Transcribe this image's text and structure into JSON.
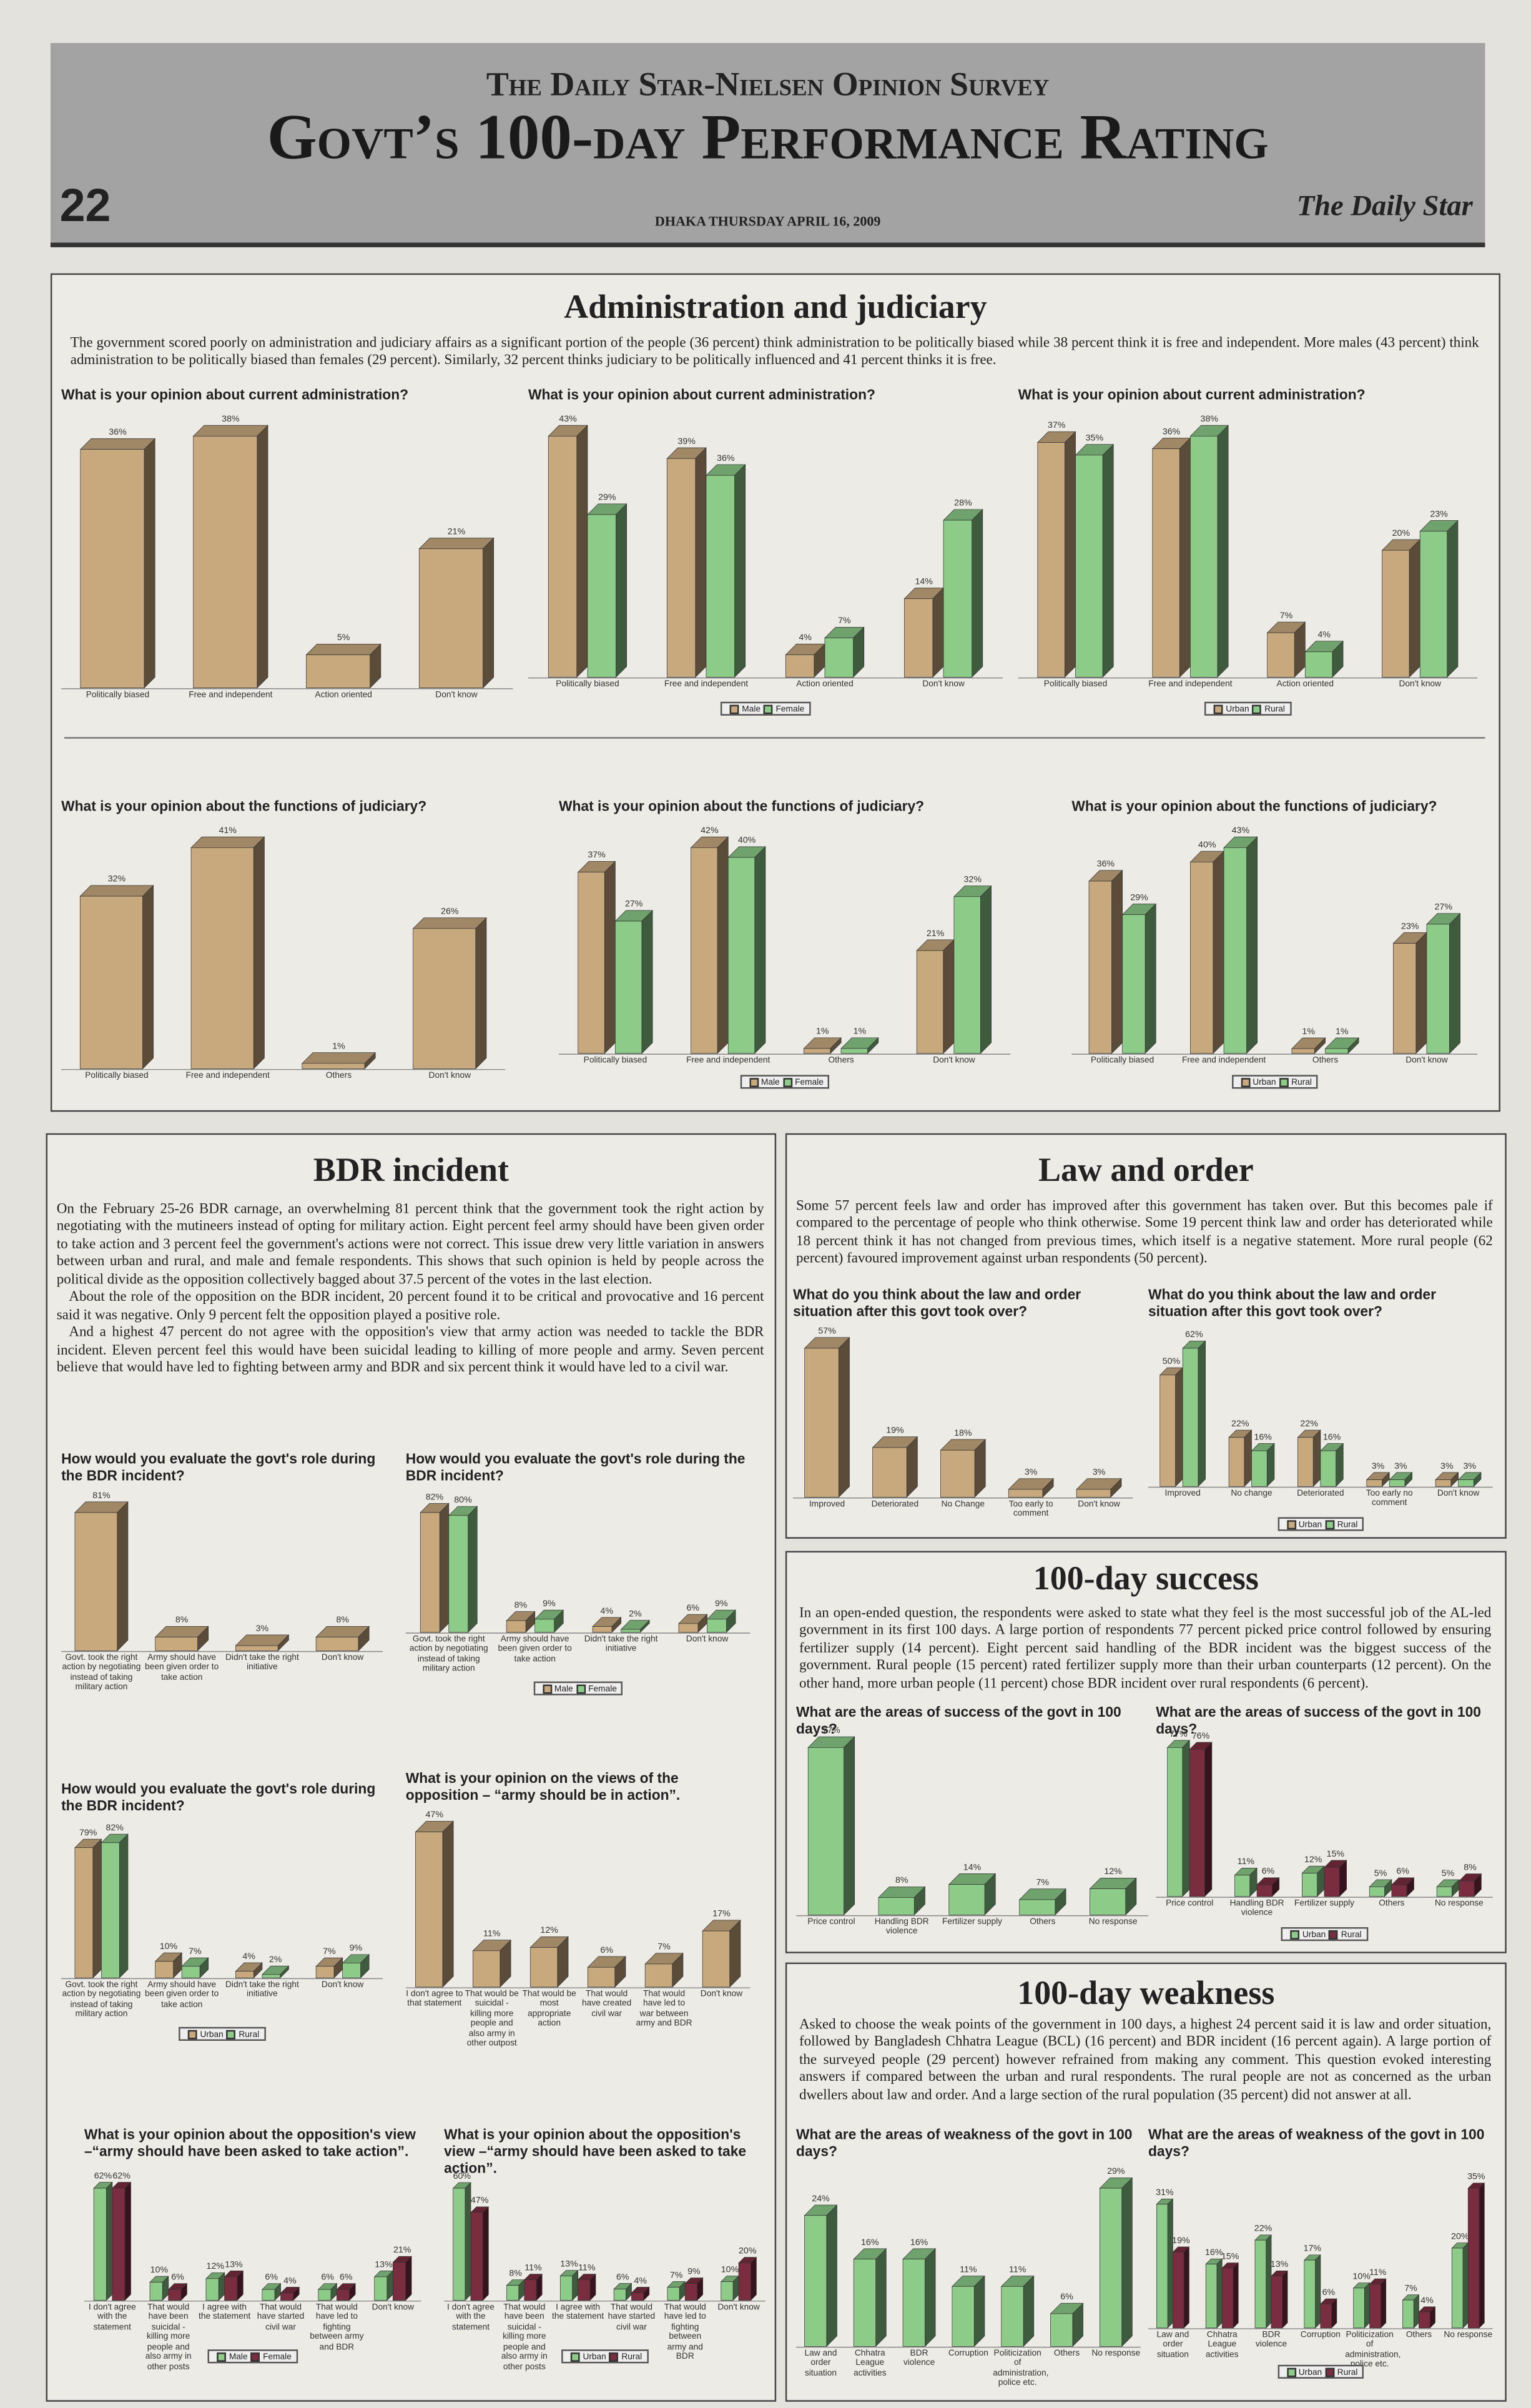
{
  "header": {
    "kicker": "The Daily Star-Nielsen Opinion Survey",
    "title": "Govt’s 100-day Performance Rating",
    "page": "22",
    "dateline": "DHAKA THURSDAY APRIL 16, 2009",
    "masthead": "The Daily Star"
  },
  "sections": [
    {
      "title": "Administration and judiciary",
      "paragraphs": [
        "The government scored poorly on administration and judiciary affairs as a significant portion of the people (36 percent) think administration to be politically biased while 38 percent think it is free and independent. More males (43 percent) think administration to be politically biased than females (29 percent). Similarly, 32 percent thinks judiciary to be politically influenced and 41 percent thinks it is free."
      ]
    },
    {
      "title": "BDR incident",
      "paragraphs": [
        "On the February 25-26 BDR carnage, an overwhelming 81 percent think that the government took the right action by negotiating with the mutineers instead of opting for military action. Eight percent feel army should have been given order to take action and 3 percent feel the government's actions were not correct. This issue drew very little variation in answers between urban and rural, and male and female respondents. This shows that such opinion is held by people across the political divide as the opposition collectively bagged about 37.5 percent of the votes in the last election.",
        "About the role of the opposition on the BDR incident, 20 percent found it to be critical and provocative and 16 percent said it was negative. Only 9 percent felt the opposition played a positive role.",
        "And a highest 47 percent do not agree with the opposition's view that army action was needed to tackle the BDR incident. Eleven percent feel this would have been suicidal leading to killing of more people and army. Seven percent believe that would have led to fighting between army and BDR and six percent think it would have led to a civil war."
      ]
    },
    {
      "title": "Law and order",
      "paragraphs": [
        "Some 57 percent feels law and order has improved after this government has taken over. But this becomes pale if compared to the percentage of people who think otherwise. Some 19 percent think law and order has deteriorated while 18 percent think it has not changed from previous times, which itself is a negative statement. More rural people (62 percent) favoured improvement against urban respondents (50 percent)."
      ]
    },
    {
      "title": "100-day success",
      "paragraphs": [
        "In an open-ended question, the respondents were asked to state what they feel is the most successful job of the AL-led government in its first 100 days. A large portion of respondents 77 percent picked price control followed by ensuring fertilizer supply (14 percent). Eight percent said handling of the BDR incident was the biggest success of the government. Rural people (15 percent) rated fertilizer supply more than their urban counterparts (12 percent). On the other hand, more urban people (11 percent) chose BDR incident over rural respondents (6 percent)."
      ]
    },
    {
      "title": "100-day weakness",
      "paragraphs": [
        "Asked to choose the weak points of the government in 100 days, a highest 24 percent said it is law and order situation, followed by Bangladesh Chhatra League (BCL) (16 percent) and BDR incident (16 percent again). A large portion of the surveyed people (29 percent) however refrained from making any comment. This question evoked interesting answers if compared between the urban and rural respondents. The rural people are not as concerned as the urban dwellers about law and order. And a large section of the rural population (35 percent) did not answer at all."
      ]
    }
  ],
  "chart_data": [
    {
      "type": "bar3d",
      "title": "What is your opinion about current administration?",
      "categories": [
        "Politically biased",
        "Free and independent",
        "Action oriented",
        "Don't know"
      ],
      "color": "#c8a97e",
      "values": [
        36,
        38,
        5,
        21
      ],
      "value_labels": [
        "36%",
        "38%",
        "5%",
        "21%"
      ]
    },
    {
      "type": "bar3d",
      "title": "What is your opinion about current administration?",
      "categories": [
        "Politically biased",
        "Free and independent",
        "Action oriented",
        "Don't know"
      ],
      "series": [
        {
          "name": "Male",
          "color": "#c8a97e",
          "values": [
            43,
            39,
            4,
            14
          ],
          "value_labels": [
            "43%",
            "39%",
            "4%",
            "14%"
          ]
        },
        {
          "name": "Female",
          "color": "#8ccb88",
          "values": [
            29,
            36,
            7,
            28
          ],
          "value_labels": [
            "29%",
            "36%",
            "7%",
            "28%"
          ]
        }
      ]
    },
    {
      "type": "bar3d",
      "title": "What is your opinion about current administration?",
      "categories": [
        "Politically biased",
        "Free and independent",
        "Action oriented",
        "Don't know"
      ],
      "series": [
        {
          "name": "Urban",
          "color": "#c8a97e",
          "values": [
            37,
            36,
            7,
            20
          ],
          "value_labels": [
            "37%",
            "36%",
            "7%",
            "20%"
          ]
        },
        {
          "name": "Rural",
          "color": "#8ccb88",
          "values": [
            35,
            38,
            4,
            23
          ],
          "value_labels": [
            "35%",
            "38%",
            "4%",
            "23%"
          ]
        }
      ]
    },
    {
      "type": "bar3d",
      "title": "What is your opinion about the functions of judiciary?",
      "categories": [
        "Politically biased",
        "Free and independent",
        "Others",
        "Don't know"
      ],
      "color": "#c8a97e",
      "values": [
        32,
        41,
        1,
        26
      ],
      "value_labels": [
        "32%",
        "41%",
        "1%",
        "26%"
      ]
    },
    {
      "type": "bar3d",
      "title": "What is your opinion about the functions of judiciary?",
      "categories": [
        "Politically biased",
        "Free and independent",
        "Others",
        "Don't know"
      ],
      "series": [
        {
          "name": "Male",
          "color": "#c8a97e",
          "values": [
            37,
            42,
            1,
            21
          ],
          "value_labels": [
            "37%",
            "42%",
            "1%",
            "21%"
          ]
        },
        {
          "name": "Female",
          "color": "#8ccb88",
          "values": [
            27,
            40,
            1,
            32
          ],
          "value_labels": [
            "27%",
            "40%",
            "1%",
            "32%"
          ]
        }
      ]
    },
    {
      "type": "bar3d",
      "title": "What is your opinion about the functions of judiciary?",
      "categories": [
        "Politically biased",
        "Free and independent",
        "Others",
        "Don't know"
      ],
      "series": [
        {
          "name": "Urban",
          "color": "#c8a97e",
          "values": [
            36,
            40,
            1,
            23
          ],
          "value_labels": [
            "36%",
            "40%",
            "1%",
            "23%"
          ]
        },
        {
          "name": "Rural",
          "color": "#8ccb88",
          "values": [
            29,
            43,
            1,
            27
          ],
          "value_labels": [
            "29%",
            "43%",
            "1%",
            "27%"
          ]
        }
      ]
    },
    {
      "type": "bar3d",
      "title": "How would you evaluate the govt's role during the BDR incident?",
      "categories": [
        "Govt. took the right action by negotiating instead of taking military action",
        "Army should have been given order to take action",
        "Didn't take the right initiative",
        "Don't know"
      ],
      "color": "#c8a97e",
      "values": [
        81,
        8,
        3,
        8
      ],
      "value_labels": [
        "81%",
        "8%",
        "3%",
        "8%"
      ]
    },
    {
      "type": "bar3d",
      "title": "How would you evaluate the govt's role during the BDR incident?",
      "categories": [
        "Govt. took the right action by negotiating instead of taking military action",
        "Army should have been given order to take action",
        "Didn't take the right initiative",
        "Don't know"
      ],
      "series": [
        {
          "name": "Male",
          "color": "#c8a97e",
          "values": [
            82,
            8,
            4,
            6
          ],
          "value_labels": [
            "82%",
            "8%",
            "4%",
            "6%"
          ]
        },
        {
          "name": "Female",
          "color": "#8ccb88",
          "values": [
            80,
            9,
            2,
            9
          ],
          "value_labels": [
            "80%",
            "9%",
            "2%",
            "9%"
          ]
        }
      ]
    },
    {
      "type": "bar3d",
      "title": "How would you evaluate the govt's role during the BDR incident?",
      "categories": [
        "Govt. took the right action by negotiating instead of taking military action",
        "Army should have been given order to take action",
        "Didn't take the right initiative",
        "Don't know"
      ],
      "series": [
        {
          "name": "Urban",
          "color": "#c8a97e",
          "values": [
            79,
            10,
            4,
            7
          ],
          "value_labels": [
            "79%",
            "10%",
            "4%",
            "7%"
          ]
        },
        {
          "name": "Rural",
          "color": "#8ccb88",
          "values": [
            82,
            7,
            2,
            9
          ],
          "value_labels": [
            "82%",
            "7%",
            "2%",
            "9%"
          ]
        }
      ]
    },
    {
      "type": "bar3d",
      "title": "What is your opinion on the views of the opposition – “army should be in action”.",
      "categories": [
        "I don't agree to that statement",
        "That would be suicidal - killing more people and also army in other outpost",
        "That would be most appropriate action",
        "That would have created civil war",
        "That would have led to war between army and BDR",
        "Don't know"
      ],
      "color": "#c8a97e",
      "values": [
        47,
        11,
        12,
        6,
        7,
        17
      ],
      "value_labels": [
        "47%",
        "11%",
        "12%",
        "6%",
        "7%",
        "17%"
      ]
    },
    {
      "type": "bar3d",
      "title": "What is your opinion about the opposition's view –“army should have been asked to take action”.",
      "categories": [
        "I don't agree with the statement",
        "That would have been suicidal - killing more people and also army in other posts",
        "I agree with the statement",
        "That would have started civil war",
        "That would have led to fighting between army and BDR",
        "Don't know"
      ],
      "series": [
        {
          "name": "Male",
          "color": "#8ccb88",
          "values": [
            62,
            10,
            12,
            6,
            6,
            13
          ],
          "value_labels": [
            "62%",
            "10%",
            "12%",
            "6%",
            "6%",
            "13%"
          ]
        },
        {
          "name": "Female",
          "color": "#7b2d40",
          "values": [
            62,
            6,
            13,
            4,
            6,
            21
          ],
          "value_labels": [
            "62%",
            "6%",
            "13%",
            "4%",
            "6%",
            "21%"
          ]
        }
      ]
    },
    {
      "type": "bar3d",
      "title": "What is your opinion about the opposition's view –“army should have been asked to take action”.",
      "categories": [
        "I don't agree with the statement",
        "That would have been suicidal - killing more people and also army in other posts",
        "I agree with the statement",
        "That would have started civil war",
        "That would have led to fighting between army and BDR",
        "Don't know"
      ],
      "series": [
        {
          "name": "Urban",
          "color": "#8ccb88",
          "values": [
            60,
            8,
            13,
            6,
            7,
            10
          ],
          "value_labels": [
            "60%",
            "8%",
            "13%",
            "6%",
            "7%",
            "10%"
          ]
        },
        {
          "name": "Rural",
          "color": "#7b2d40",
          "values": [
            47,
            11,
            11,
            4,
            9,
            20
          ],
          "value_labels": [
            "47%",
            "11%",
            "11%",
            "4%",
            "9%",
            "20%"
          ]
        }
      ]
    },
    {
      "type": "bar3d",
      "title": "What do you think about the law and order situation after this govt took over?",
      "categories": [
        "Improved",
        "Deteriorated",
        "No Change",
        "Too early to comment",
        "Don't know"
      ],
      "color": "#c8a97e",
      "values": [
        57,
        19,
        18,
        3,
        3
      ],
      "value_labels": [
        "57%",
        "19%",
        "18%",
        "3%",
        "3%"
      ]
    },
    {
      "type": "bar3d",
      "title": "What do you think about the law and order situation after this govt took over?",
      "categories": [
        "Improved",
        "No change",
        "Deteriorated",
        "Too early no comment",
        "Don't know"
      ],
      "series": [
        {
          "name": "Urban",
          "color": "#c8a97e",
          "values": [
            50,
            22,
            22,
            3,
            3
          ],
          "value_labels": [
            "50%",
            "22%",
            "22%",
            "3%",
            "3%"
          ]
        },
        {
          "name": "Rural",
          "color": "#8ccb88",
          "values": [
            62,
            16,
            16,
            3,
            3
          ],
          "value_labels": [
            "62%",
            "16%",
            "16%",
            "3%",
            "3%"
          ]
        }
      ]
    },
    {
      "type": "bar3d",
      "title": "What are the areas of success of the govt in 100 days?",
      "categories": [
        "Price control",
        "Handling BDR violence",
        "Fertilizer supply",
        "Others",
        "No response"
      ],
      "color": "#8ccb88",
      "values": [
        77,
        8,
        14,
        7,
        12
      ],
      "value_labels": [
        "77%",
        "8%",
        "14%",
        "7%",
        "12%"
      ]
    },
    {
      "type": "bar3d",
      "title": "What are the areas of success of the govt in 100 days?",
      "categories": [
        "Price control",
        "Handling BDR violence",
        "Fertilizer supply",
        "Others",
        "No response"
      ],
      "series": [
        {
          "name": "Urban",
          "color": "#8ccb88",
          "values": [
            77,
            11,
            12,
            5,
            5
          ],
          "value_labels": [
            "77%",
            "11%",
            "12%",
            "5%",
            "5%"
          ]
        },
        {
          "name": "Rural",
          "color": "#7b2d40",
          "values": [
            76,
            6,
            15,
            6,
            8
          ],
          "value_labels": [
            "76%",
            "6%",
            "15%",
            "6%",
            "8%"
          ]
        }
      ]
    },
    {
      "type": "bar3d",
      "title": "What are the areas of weakness of the govt in 100 days?",
      "categories": [
        "Law and order situation",
        "Chhatra League activities",
        "BDR violence",
        "Corruption",
        "Politicization of administration, police etc.",
        "Others",
        "No response"
      ],
      "color": "#8ccb88",
      "values": [
        24,
        16,
        16,
        11,
        11,
        6,
        29
      ],
      "value_labels": [
        "24%",
        "16%",
        "16%",
        "11%",
        "11%",
        "6%",
        "29%"
      ]
    },
    {
      "type": "bar3d",
      "title": "What are the areas of weakness of the govt in 100 days?",
      "categories": [
        "Law and order situation",
        "Chhatra League activities",
        "BDR violence",
        "Corruption",
        "Politicization of administration, police etc.",
        "Others",
        "No response"
      ],
      "series": [
        {
          "name": "Urban",
          "color": "#8ccb88",
          "values": [
            31,
            16,
            22,
            17,
            10,
            7,
            20
          ],
          "value_labels": [
            "31%",
            "16%",
            "22%",
            "17%",
            "10%",
            "7%",
            "20%"
          ]
        },
        {
          "name": "Rural",
          "color": "#7b2d40",
          "values": [
            19,
            15,
            13,
            6,
            11,
            4,
            35
          ],
          "value_labels": [
            "19%",
            "15%",
            "13%",
            "6%",
            "11%",
            "4%",
            "35%"
          ]
        }
      ]
    }
  ]
}
